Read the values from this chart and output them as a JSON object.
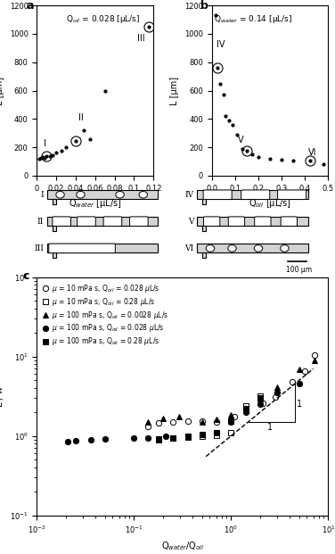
{
  "panel_a": {
    "title": "Q$_{oil}$ = 0.028 [μL/s]",
    "xlabel": "Q$_{water}$ [μL/s]",
    "ylabel": "L [μm]",
    "xlim": [
      0,
      0.12
    ],
    "ylim": [
      0,
      1200
    ],
    "xticks": [
      0,
      0.02,
      0.04,
      0.06,
      0.08,
      0.1,
      0.12
    ],
    "yticks": [
      0,
      200,
      400,
      600,
      800,
      1000,
      1200
    ],
    "data_x": [
      0.002,
      0.004,
      0.006,
      0.008,
      0.01,
      0.013,
      0.016,
      0.02,
      0.025,
      0.03,
      0.04,
      0.048,
      0.055,
      0.07,
      0.115
    ],
    "data_y": [
      120,
      125,
      130,
      128,
      135,
      140,
      145,
      160,
      175,
      200,
      245,
      320,
      260,
      600,
      1050
    ],
    "circled_indices": [
      4,
      10,
      14
    ],
    "labels": [
      [
        "I",
        0.007,
        195
      ],
      [
        "II",
        0.043,
        375
      ],
      [
        "III",
        0.103,
        940
      ]
    ]
  },
  "panel_b": {
    "title": "Q$_{water}$ = 0.14 [μL/s]",
    "xlabel": "Q$_{oil}$ [μL/s]",
    "ylabel": "L [μm]",
    "xlim": [
      0,
      0.5
    ],
    "ylim": [
      0,
      1200
    ],
    "xticks": [
      0,
      0.1,
      0.2,
      0.3,
      0.4,
      0.5
    ],
    "yticks": [
      0,
      200,
      400,
      600,
      800,
      1000,
      1200
    ],
    "data_x": [
      0.015,
      0.025,
      0.035,
      0.05,
      0.06,
      0.075,
      0.09,
      0.11,
      0.13,
      0.15,
      0.175,
      0.2,
      0.25,
      0.3,
      0.35,
      0.42,
      0.48
    ],
    "data_y": [
      1130,
      760,
      650,
      570,
      420,
      390,
      360,
      290,
      190,
      175,
      150,
      130,
      120,
      110,
      105,
      105,
      80
    ],
    "circled_indices": [
      1,
      9,
      15
    ],
    "labels": [
      [
        "IV",
        0.022,
        890
      ],
      [
        "V",
        0.112,
        220
      ],
      [
        "VI",
        0.415,
        130
      ]
    ]
  },
  "panel_c": {
    "xlabel": "Q$_{water}$/Q$_{oil}$",
    "ylabel": "L / w",
    "xlim": [
      0.01,
      10
    ],
    "ylim": [
      0.1,
      100
    ],
    "series": [
      {
        "label": "μ = 10 mPa s, Q$_{oil}$ = 0.028 μL/s",
        "marker": "o",
        "filled": false,
        "x": [
          0.14,
          0.18,
          0.25,
          0.36,
          0.5,
          0.71,
          1.07,
          1.43,
          2.14,
          2.86,
          4.29,
          5.71,
          7.14
        ],
        "y": [
          1.3,
          1.45,
          1.5,
          1.55,
          1.55,
          1.5,
          1.75,
          2.2,
          2.6,
          3.1,
          4.8,
          6.5,
          10.5
        ]
      },
      {
        "label": "μ = 10 mPa s, Q$_{oil}$ = 0.28 μL/s",
        "marker": "s",
        "filled": false,
        "x": [
          0.18,
          0.25,
          0.36,
          0.5,
          0.71,
          1.0,
          1.43,
          2.0
        ],
        "y": [
          0.92,
          0.95,
          0.97,
          0.98,
          1.02,
          1.1,
          2.4,
          3.2
        ]
      },
      {
        "label": "μ = 100 mPa s, Q$_{oil}$ = 0.0028 μL/s",
        "marker": "^",
        "filled": true,
        "x": [
          0.14,
          0.2,
          0.29,
          0.5,
          0.71,
          1.0,
          1.43,
          2.0,
          3.0,
          5.0,
          7.14
        ],
        "y": [
          1.5,
          1.65,
          1.75,
          1.5,
          1.6,
          1.85,
          2.1,
          2.9,
          4.1,
          6.8,
          9.0
        ]
      },
      {
        "label": "μ = 100 mPa s, Q$_{oil}$ = 0.028 μL/s",
        "marker": "o",
        "filled": true,
        "x": [
          0.021,
          0.025,
          0.036,
          0.05,
          0.1,
          0.14,
          0.21,
          0.5,
          0.71,
          1.0,
          1.43,
          2.0,
          3.0,
          5.0
        ],
        "y": [
          0.85,
          0.87,
          0.9,
          0.92,
          0.93,
          0.95,
          1.0,
          1.05,
          1.1,
          1.5,
          2.0,
          2.5,
          3.5,
          4.5
        ]
      },
      {
        "label": "μ = 100 mPa s, Q$_{oil}$ = 0.28 μL/s",
        "marker": "s",
        "filled": true,
        "x": [
          0.18,
          0.25,
          0.36,
          0.5,
          0.71,
          1.0,
          1.43,
          2.0
        ],
        "y": [
          0.9,
          0.95,
          1.0,
          1.05,
          1.1,
          1.55,
          2.2,
          3.0
        ]
      }
    ],
    "dashed_line_x": [
      0.55,
      7.0
    ],
    "dashed_line_y": [
      0.55,
      7.0
    ]
  }
}
